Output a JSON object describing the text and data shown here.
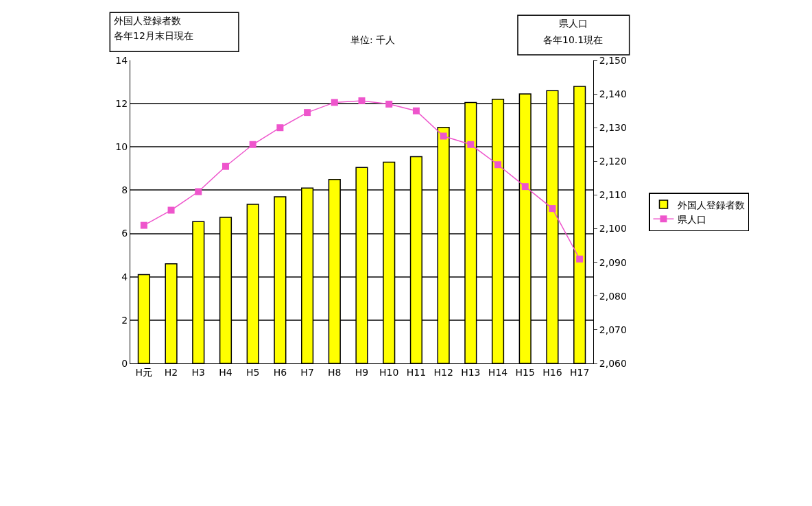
{
  "chart_data": {
    "type": "bar",
    "subtitle": "単位: 千人",
    "ylabel": "外国人登録者数",
    "y2label": "県人口",
    "annotations": [
      "各年12月末日現在",
      "各年10.1現在"
    ],
    "categories": [
      "H元",
      "H2",
      "H3",
      "H4",
      "H5",
      "H6",
      "H7",
      "H8",
      "H9",
      "H10",
      "H11",
      "H12",
      "H13",
      "H14",
      "H15",
      "H16",
      "H17"
    ],
    "series": [
      {
        "name": "外国人登録者数",
        "color": "#ffff00",
        "values": [
          4.1,
          4.6,
          6.55,
          6.75,
          7.35,
          7.7,
          8.1,
          8.5,
          9.05,
          9.3,
          9.55,
          10.9,
          12.05,
          12.2,
          12.45,
          12.6,
          12.8
        ]
      },
      {
        "name": "県人口",
        "type": "line",
        "axis": "y2",
        "color": "#ee55cc",
        "marker": "square",
        "values": [
          2101,
          2105.5,
          2111,
          2118.5,
          2125,
          2130,
          2134.5,
          2137.5,
          2138,
          2137,
          2135,
          2127.5,
          2125,
          2119,
          2112.5,
          2106,
          2091
        ]
      }
    ],
    "ylim": [
      0,
      14
    ],
    "yticks": [
      0,
      2,
      4,
      6,
      8,
      10,
      12,
      14
    ],
    "y2lim": [
      2060,
      2150
    ],
    "y2ticks": [
      {
        "value": 2060,
        "label": "2,060"
      },
      {
        "value": 2070,
        "label": "2,070"
      },
      {
        "value": 2080,
        "label": "2,080"
      },
      {
        "value": 2090,
        "label": "2,090"
      },
      {
        "value": 2100,
        "label": "2,100"
      },
      {
        "value": 2110,
        "label": "2,110"
      },
      {
        "value": 2120,
        "label": "2,120"
      },
      {
        "value": 2130,
        "label": "2,130"
      },
      {
        "value": 2140,
        "label": "2,140"
      },
      {
        "value": 2150,
        "label": "2,150"
      }
    ],
    "grid": "y",
    "legend": "right"
  }
}
